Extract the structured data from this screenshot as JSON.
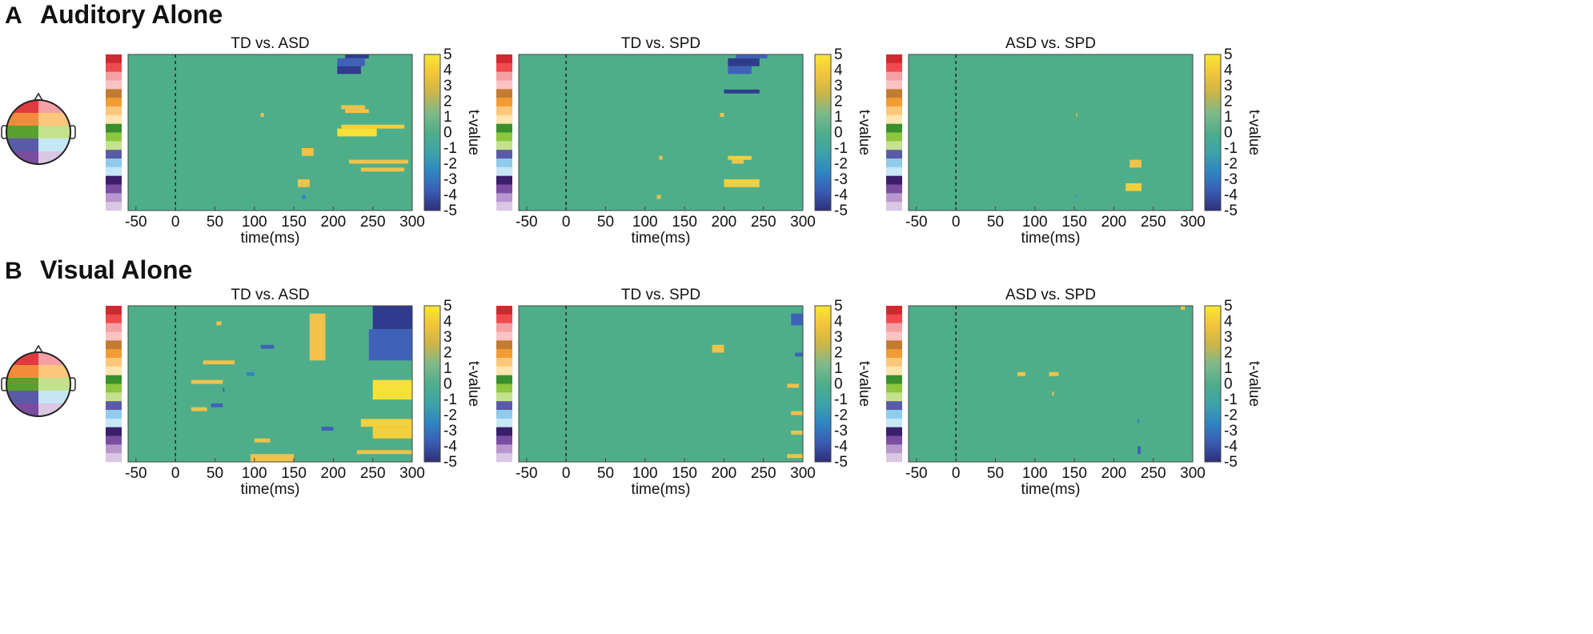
{
  "colors": {
    "heatmap_zero": "#4fae8a",
    "positive": "#f2c24a",
    "positive_strong": "#f7e138",
    "negative": "#3f62b8",
    "negative_strong": "#2f3b8c",
    "colorbar_stops": [
      "#f9e732",
      "#f2c43c",
      "#c9b54a",
      "#7fb98a",
      "#4fae8a",
      "#3ea3a8",
      "#2f86c2",
      "#3a5cb3",
      "#2e2f78"
    ],
    "electrode_groups": [
      "#d0282f",
      "#ef4b4e",
      "#f5a0a5",
      "#fbc3c3",
      "#c27c32",
      "#f29d34",
      "#fbc77a",
      "#fde5b0",
      "#3a8f2f",
      "#8dc63f",
      "#c4e28e",
      "#5a5ba6",
      "#8fcbea",
      "#c6e7f6",
      "#3a1f6b",
      "#7a4da0",
      "#b797cd",
      "#dac7e4"
    ],
    "scalp_cells": [
      "#e03a3e",
      "#f5a0a5",
      "#f28c3a",
      "#fbc77a",
      "#5aa02c",
      "#c4e28e",
      "#5a5ba6",
      "#c6e7f6",
      "#7a4da0",
      "#dac7e4"
    ]
  },
  "panels": [
    {
      "letter": "A",
      "title": "Auditory Alone"
    },
    {
      "letter": "B",
      "title": "Visual Alone"
    }
  ],
  "chart_data": [
    {
      "type": "heatmap",
      "panel": "A",
      "title": "TD vs. ASD",
      "xlabel": "time(ms)",
      "colorbar_label": "t-value",
      "xlim": [
        -60,
        300
      ],
      "xticks": [
        -50,
        0,
        50,
        100,
        150,
        200,
        250,
        300
      ],
      "clim": [
        -5,
        5
      ],
      "cticks": [
        5,
        4,
        3,
        2,
        1,
        0,
        -1,
        -2,
        -3,
        -4,
        -5
      ],
      "marker_x": 0,
      "n_rows": 40,
      "clusters": [
        {
          "t0": 215,
          "t1": 245,
          "r0": 0,
          "r1": 1,
          "v": -4
        },
        {
          "t0": 205,
          "t1": 240,
          "r0": 1,
          "r1": 3,
          "v": -3
        },
        {
          "t0": 205,
          "t1": 235,
          "r0": 3,
          "r1": 5,
          "v": -4
        },
        {
          "t0": 210,
          "t1": 240,
          "r0": 13,
          "r1": 14,
          "v": 3
        },
        {
          "t0": 215,
          "t1": 245,
          "r0": 14,
          "r1": 15,
          "v": 3
        },
        {
          "t0": 108,
          "t1": 112,
          "r0": 15,
          "r1": 16,
          "v": 3
        },
        {
          "t0": 210,
          "t1": 290,
          "r0": 18,
          "r1": 19,
          "v": 4
        },
        {
          "t0": 205,
          "t1": 255,
          "r0": 19,
          "r1": 21,
          "v": 5
        },
        {
          "t0": 160,
          "t1": 175,
          "r0": 24,
          "r1": 26,
          "v": 3
        },
        {
          "t0": 220,
          "t1": 295,
          "r0": 27,
          "r1": 28,
          "v": 3
        },
        {
          "t0": 235,
          "t1": 290,
          "r0": 29,
          "r1": 30,
          "v": 3
        },
        {
          "t0": 155,
          "t1": 170,
          "r0": 32,
          "r1": 34,
          "v": 3
        },
        {
          "t0": 160,
          "t1": 165,
          "r0": 36,
          "r1": 37,
          "v": -2
        }
      ]
    },
    {
      "type": "heatmap",
      "panel": "A",
      "title": "TD vs. SPD",
      "xlabel": "time(ms)",
      "colorbar_label": "t-value",
      "xlim": [
        -60,
        300
      ],
      "xticks": [
        -50,
        0,
        50,
        100,
        150,
        200,
        250,
        300
      ],
      "clim": [
        -5,
        5
      ],
      "cticks": [
        5,
        4,
        3,
        2,
        1,
        0,
        -1,
        -2,
        -3,
        -4,
        -5
      ],
      "marker_x": 0,
      "n_rows": 40,
      "clusters": [
        {
          "t0": 215,
          "t1": 255,
          "r0": 0,
          "r1": 1,
          "v": -3
        },
        {
          "t0": 205,
          "t1": 245,
          "r0": 1,
          "r1": 3,
          "v": -4
        },
        {
          "t0": 205,
          "t1": 235,
          "r0": 3,
          "r1": 5,
          "v": -3
        },
        {
          "t0": 200,
          "t1": 245,
          "r0": 9,
          "r1": 10,
          "v": -4
        },
        {
          "t0": 195,
          "t1": 200,
          "r0": 15,
          "r1": 16,
          "v": 3
        },
        {
          "t0": 118,
          "t1": 122,
          "r0": 26,
          "r1": 27,
          "v": 3
        },
        {
          "t0": 205,
          "t1": 235,
          "r0": 26,
          "r1": 27,
          "v": 4
        },
        {
          "t0": 210,
          "t1": 225,
          "r0": 27,
          "r1": 28,
          "v": 3
        },
        {
          "t0": 200,
          "t1": 245,
          "r0": 32,
          "r1": 34,
          "v": 4
        },
        {
          "t0": 115,
          "t1": 120,
          "r0": 36,
          "r1": 37,
          "v": 3
        }
      ]
    },
    {
      "type": "heatmap",
      "panel": "A",
      "title": "ASD vs. SPD",
      "xlabel": "time(ms)",
      "colorbar_label": "t-value",
      "xlim": [
        -60,
        300
      ],
      "xticks": [
        -50,
        0,
        50,
        100,
        150,
        200,
        250,
        300
      ],
      "clim": [
        -5,
        5
      ],
      "cticks": [
        5,
        4,
        3,
        2,
        1,
        0,
        -1,
        -2,
        -3,
        -4,
        -5
      ],
      "marker_x": 0,
      "n_rows": 40,
      "clusters": [
        {
          "t0": 152,
          "t1": 154,
          "r0": 15,
          "r1": 16,
          "v": 1
        },
        {
          "t0": 220,
          "t1": 235,
          "r0": 27,
          "r1": 29,
          "v": 3
        },
        {
          "t0": 215,
          "t1": 235,
          "r0": 33,
          "r1": 35,
          "v": 4
        },
        {
          "t0": 150,
          "t1": 153,
          "r0": 36,
          "r1": 37,
          "v": -1
        }
      ]
    },
    {
      "type": "heatmap",
      "panel": "B",
      "title": "TD vs. ASD",
      "xlabel": "time(ms)",
      "colorbar_label": "t-value",
      "xlim": [
        -60,
        300
      ],
      "xticks": [
        -50,
        0,
        50,
        100,
        150,
        200,
        250,
        300
      ],
      "clim": [
        -5,
        5
      ],
      "cticks": [
        5,
        4,
        3,
        2,
        1,
        0,
        -1,
        -2,
        -3,
        -4,
        -5
      ],
      "marker_x": 0,
      "n_rows": 40,
      "clusters": [
        {
          "t0": 250,
          "t1": 300,
          "r0": 0,
          "r1": 6,
          "v": -4
        },
        {
          "t0": 245,
          "t1": 300,
          "r0": 6,
          "r1": 14,
          "v": -3
        },
        {
          "t0": 170,
          "t1": 190,
          "r0": 2,
          "r1": 14,
          "v": 3
        },
        {
          "t0": 52,
          "t1": 58,
          "r0": 4,
          "r1": 5,
          "v": 3
        },
        {
          "t0": 108,
          "t1": 125,
          "r0": 10,
          "r1": 11,
          "v": -3
        },
        {
          "t0": 35,
          "t1": 75,
          "r0": 14,
          "r1": 15,
          "v": 3
        },
        {
          "t0": 90,
          "t1": 100,
          "r0": 17,
          "r1": 18,
          "v": -2
        },
        {
          "t0": 20,
          "t1": 60,
          "r0": 19,
          "r1": 20,
          "v": 3
        },
        {
          "t0": 250,
          "t1": 300,
          "r0": 19,
          "r1": 24,
          "v": 5
        },
        {
          "t0": 60,
          "t1": 62,
          "r0": 21,
          "r1": 22,
          "v": -3
        },
        {
          "t0": 45,
          "t1": 60,
          "r0": 25,
          "r1": 26,
          "v": -3
        },
        {
          "t0": 20,
          "t1": 40,
          "r0": 26,
          "r1": 27,
          "v": 3
        },
        {
          "t0": 235,
          "t1": 300,
          "r0": 29,
          "r1": 31,
          "v": 4
        },
        {
          "t0": 250,
          "t1": 300,
          "r0": 31,
          "r1": 34,
          "v": 4
        },
        {
          "t0": 185,
          "t1": 200,
          "r0": 31,
          "r1": 32,
          "v": -3
        },
        {
          "t0": 100,
          "t1": 120,
          "r0": 34,
          "r1": 35,
          "v": 3
        },
        {
          "t0": 230,
          "t1": 300,
          "r0": 37,
          "r1": 38,
          "v": 3
        },
        {
          "t0": 95,
          "t1": 150,
          "r0": 38,
          "r1": 40,
          "v": 3
        }
      ]
    },
    {
      "type": "heatmap",
      "panel": "B",
      "title": "TD vs. SPD",
      "xlabel": "time(ms)",
      "colorbar_label": "t-value",
      "xlim": [
        -60,
        300
      ],
      "xticks": [
        -50,
        0,
        50,
        100,
        150,
        200,
        250,
        300
      ],
      "clim": [
        -5,
        5
      ],
      "cticks": [
        5,
        4,
        3,
        2,
        1,
        0,
        -1,
        -2,
        -3,
        -4,
        -5
      ],
      "marker_x": 0,
      "n_rows": 40,
      "clusters": [
        {
          "t0": 285,
          "t1": 300,
          "r0": 2,
          "r1": 5,
          "v": -3
        },
        {
          "t0": 185,
          "t1": 200,
          "r0": 10,
          "r1": 12,
          "v": 3
        },
        {
          "t0": 290,
          "t1": 300,
          "r0": 12,
          "r1": 13,
          "v": -3
        },
        {
          "t0": 280,
          "t1": 295,
          "r0": 20,
          "r1": 21,
          "v": 3
        },
        {
          "t0": 285,
          "t1": 300,
          "r0": 27,
          "r1": 28,
          "v": 3
        },
        {
          "t0": 285,
          "t1": 300,
          "r0": 32,
          "r1": 33,
          "v": 3
        },
        {
          "t0": 280,
          "t1": 300,
          "r0": 38,
          "r1": 39,
          "v": 3
        }
      ]
    },
    {
      "type": "heatmap",
      "panel": "B",
      "title": "ASD vs. SPD",
      "xlabel": "time(ms)",
      "colorbar_label": "t-value",
      "xlim": [
        -60,
        300
      ],
      "xticks": [
        -50,
        0,
        50,
        100,
        150,
        200,
        250,
        300
      ],
      "clim": [
        -5,
        5
      ],
      "cticks": [
        5,
        4,
        3,
        2,
        1,
        0,
        -1,
        -2,
        -3,
        -4,
        -5
      ],
      "marker_x": 0,
      "n_rows": 40,
      "clusters": [
        {
          "t0": 285,
          "t1": 290,
          "r0": 0,
          "r1": 1,
          "v": 3
        },
        {
          "t0": 78,
          "t1": 88,
          "r0": 17,
          "r1": 18,
          "v": 3
        },
        {
          "t0": 118,
          "t1": 130,
          "r0": 17,
          "r1": 18,
          "v": 3
        },
        {
          "t0": 122,
          "t1": 124,
          "r0": 22,
          "r1": 23,
          "v": 3
        },
        {
          "t0": 230,
          "t1": 232,
          "r0": 29,
          "r1": 30,
          "v": -2
        },
        {
          "t0": 230,
          "t1": 234,
          "r0": 36,
          "r1": 38,
          "v": -3
        }
      ]
    }
  ]
}
